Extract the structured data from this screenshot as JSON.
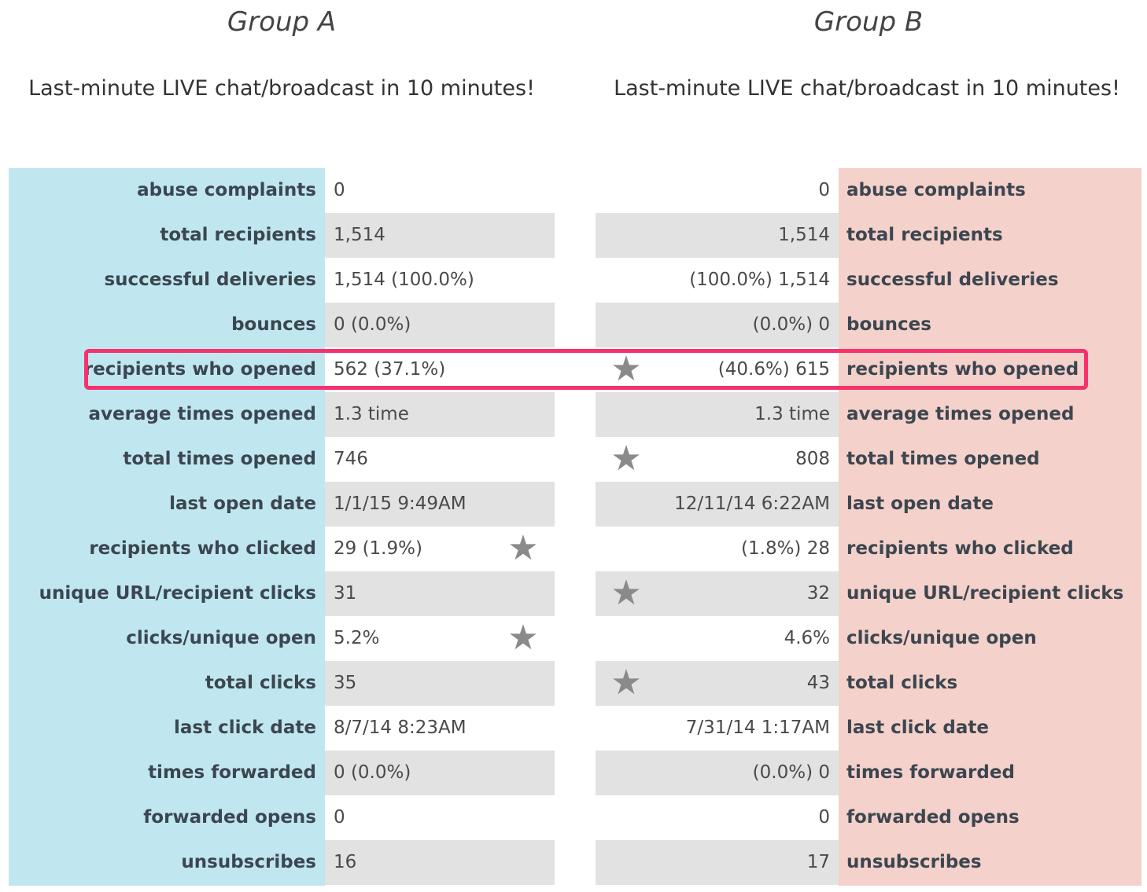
{
  "group_a": {
    "title": "Group A",
    "subject": "Last-minute LIVE chat/broadcast in 10 minutes!"
  },
  "group_b": {
    "title": "Group B",
    "subject": "Last-minute LIVE chat/broadcast in 10 minutes!"
  },
  "rows": [
    {
      "label": "abuse complaints",
      "a": "0",
      "b": "0"
    },
    {
      "label": "total recipients",
      "a": "1,514",
      "b": "1,514"
    },
    {
      "label": "successful deliveries",
      "a": "1,514 (100.0%)",
      "b": "(100.0%) 1,514"
    },
    {
      "label": "bounces",
      "a": "0 (0.0%)",
      "b": "(0.0%) 0"
    },
    {
      "label": "recipients who opened",
      "a": "562 (37.1%)",
      "b": "(40.6%) 615"
    },
    {
      "label": "average times opened",
      "a": "1.3 time",
      "b": "1.3 time"
    },
    {
      "label": "total times opened",
      "a": "746",
      "b": "808"
    },
    {
      "label": "last open date",
      "a": "1/1/15 9:49AM",
      "b": "12/11/14 6:22AM"
    },
    {
      "label": "recipients who clicked",
      "a": "29 (1.9%)",
      "b": "(1.8%) 28"
    },
    {
      "label": "unique URL/recipient clicks",
      "a": "31",
      "b": "32"
    },
    {
      "label": "clicks/unique open",
      "a": "5.2%",
      "b": "4.6%"
    },
    {
      "label": "total clicks",
      "a": "35",
      "b": "43"
    },
    {
      "label": "last click date",
      "a": "8/7/14 8:23AM",
      "b": "7/31/14 1:17AM"
    },
    {
      "label": "times forwarded",
      "a": "0 (0.0%)",
      "b": "(0.0%) 0"
    },
    {
      "label": "forwarded opens",
      "a": "0",
      "b": "0"
    },
    {
      "label": "unsubscribes",
      "a": "16",
      "b": "17"
    }
  ],
  "stars": [
    {
      "row": 4,
      "group": "B"
    },
    {
      "row": 6,
      "group": "B"
    },
    {
      "row": 8,
      "group": "A"
    },
    {
      "row": 9,
      "group": "B"
    },
    {
      "row": 10,
      "group": "A"
    },
    {
      "row": 11,
      "group": "B"
    }
  ],
  "star_icon": "star-icon",
  "highlight_row": 4,
  "colors": {
    "group_a_bg": "#c0e7ef",
    "group_b_bg": "#f4d1ca",
    "row_shade": "#e2e2e2",
    "highlight_border": "#f5326e",
    "star": "#8a8a8a"
  }
}
